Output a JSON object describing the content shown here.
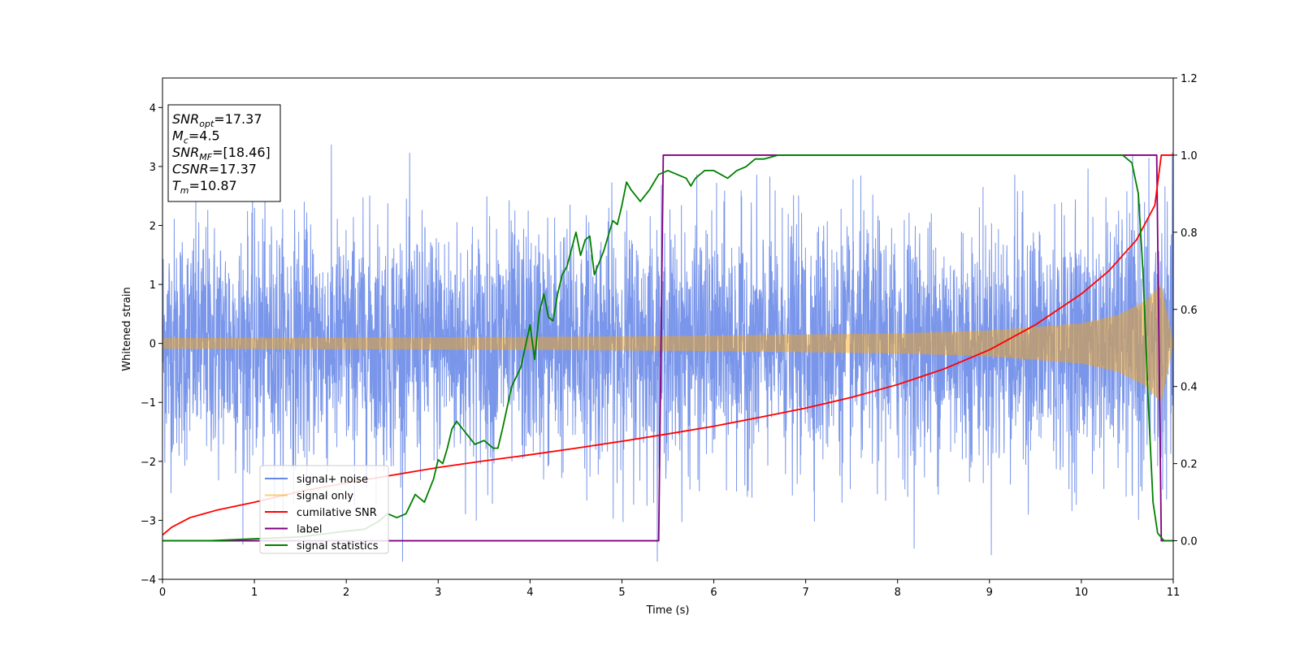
{
  "chart_data": {
    "type": "line",
    "title": "",
    "xlabel": "Time (s)",
    "ylabel": "Whitened strain",
    "xlim": [
      0,
      11
    ],
    "ylim": [
      -4,
      4.5
    ],
    "y2lim": [
      -0.1,
      1.2
    ],
    "x_ticks": [
      "0",
      "1",
      "2",
      "3",
      "4",
      "5",
      "6",
      "7",
      "8",
      "9",
      "10",
      "11"
    ],
    "y_ticks": [
      "−4",
      "−3",
      "−2",
      "−1",
      "0",
      "1",
      "2",
      "3",
      "4"
    ],
    "y2_ticks": [
      "0.0",
      "0.2",
      "0.4",
      "0.6",
      "0.8",
      "1.0",
      "1.2"
    ],
    "grid": false,
    "legend_position": "lower-left",
    "annotation": {
      "lines": [
        {
          "symbol": "SNR",
          "sub": "opt",
          "value": "=17.37"
        },
        {
          "symbol": "M",
          "sub": "c",
          "value": "=4.5"
        },
        {
          "symbol": "SNR",
          "sub": "MF",
          "value": "=[18.46]"
        },
        {
          "symbol": "CSNR",
          "sub": "",
          "value": "=17.37"
        },
        {
          "symbol": "T",
          "sub": "m",
          "value": "=10.87"
        }
      ]
    },
    "series": [
      {
        "name": "signal+ noise",
        "axis": "left",
        "color": "#4169e1",
        "opacity": 0.7,
        "kind": "noisy-strain",
        "noise_sigma": 1.0,
        "x_range": [
          0,
          11
        ]
      },
      {
        "name": "signal only",
        "axis": "left",
        "color": "#ffa500",
        "opacity": 0.45,
        "kind": "chirp-envelope",
        "x": [
          0,
          2,
          4,
          6,
          8,
          9,
          10,
          10.4,
          10.7,
          10.87,
          11
        ],
        "amplitude": [
          0.09,
          0.1,
          0.11,
          0.13,
          0.17,
          0.22,
          0.34,
          0.48,
          0.72,
          1.0,
          0.0
        ]
      },
      {
        "name": "cumilative SNR",
        "axis": "right",
        "color": "#ff0000",
        "x": [
          0,
          0.1,
          0.3,
          0.6,
          1,
          1.5,
          2,
          2.5,
          3,
          3.5,
          4,
          4.5,
          5,
          5.5,
          6,
          6.5,
          7,
          7.5,
          8,
          8.5,
          9,
          9.5,
          10,
          10.3,
          10.6,
          10.8,
          10.87,
          11
        ],
        "y": [
          0.015,
          0.035,
          0.06,
          0.08,
          0.1,
          0.128,
          0.15,
          0.17,
          0.19,
          0.207,
          0.223,
          0.24,
          0.258,
          0.277,
          0.297,
          0.32,
          0.344,
          0.372,
          0.405,
          0.445,
          0.495,
          0.56,
          0.64,
          0.7,
          0.78,
          0.87,
          1.0,
          1.0
        ]
      },
      {
        "name": "label",
        "axis": "right",
        "color": "#800080",
        "x": [
          0,
          5.4,
          5.45,
          10.82,
          10.87,
          11
        ],
        "y": [
          0.0,
          0.0,
          1.0,
          1.0,
          0.0,
          0.0
        ]
      },
      {
        "name": "signal statistics",
        "axis": "right",
        "color": "#008000",
        "x": [
          0,
          0.5,
          1,
          1.5,
          2,
          2.2,
          2.35,
          2.45,
          2.55,
          2.65,
          2.75,
          2.85,
          2.95,
          3.0,
          3.05,
          3.1,
          3.15,
          3.2,
          3.3,
          3.4,
          3.5,
          3.6,
          3.65,
          3.7,
          3.8,
          3.9,
          4.0,
          4.05,
          4.1,
          4.15,
          4.2,
          4.25,
          4.3,
          4.35,
          4.4,
          4.5,
          4.55,
          4.6,
          4.65,
          4.7,
          4.8,
          4.9,
          4.95,
          5.0,
          5.05,
          5.1,
          5.2,
          5.3,
          5.4,
          5.5,
          5.6,
          5.7,
          5.75,
          5.8,
          5.85,
          5.9,
          6.0,
          6.15,
          6.25,
          6.35,
          6.45,
          6.55,
          6.7,
          6.9,
          7.2,
          7.5,
          8.0,
          9.0,
          10.0,
          10.3,
          10.45,
          10.55,
          10.62,
          10.67,
          10.73,
          10.78,
          10.83,
          10.9,
          11
        ],
        "y": [
          0.0,
          0.0,
          0.005,
          0.01,
          0.025,
          0.03,
          0.05,
          0.07,
          0.06,
          0.07,
          0.12,
          0.1,
          0.16,
          0.21,
          0.2,
          0.24,
          0.29,
          0.31,
          0.28,
          0.25,
          0.26,
          0.24,
          0.24,
          0.29,
          0.4,
          0.45,
          0.56,
          0.47,
          0.59,
          0.64,
          0.58,
          0.57,
          0.64,
          0.69,
          0.71,
          0.8,
          0.74,
          0.78,
          0.79,
          0.69,
          0.75,
          0.83,
          0.82,
          0.87,
          0.93,
          0.91,
          0.88,
          0.91,
          0.95,
          0.96,
          0.95,
          0.94,
          0.92,
          0.94,
          0.95,
          0.96,
          0.96,
          0.94,
          0.96,
          0.97,
          0.99,
          0.99,
          1.0,
          1.0,
          1.0,
          1.0,
          1.0,
          1.0,
          1.0,
          1.0,
          1.0,
          0.98,
          0.9,
          0.7,
          0.35,
          0.1,
          0.02,
          0.0,
          0.0
        ]
      }
    ]
  }
}
